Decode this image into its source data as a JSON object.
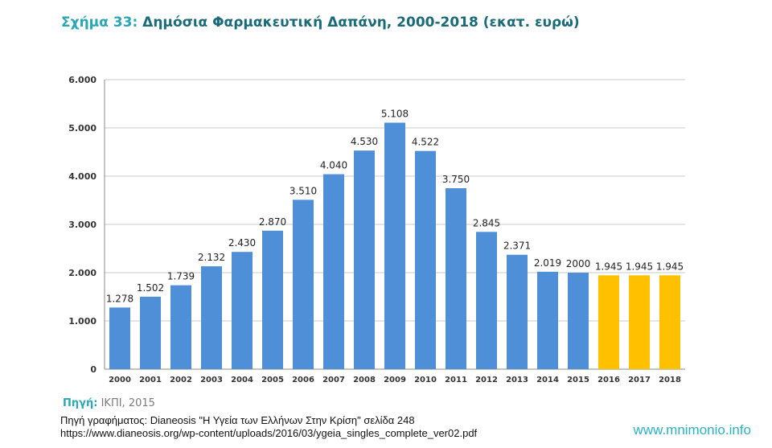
{
  "header": {
    "label": "Σχήμα 33:",
    "title": "Δημόσια Φαρμακευτική Δαπάνη, 2000-2018 (εκατ. ευρώ)"
  },
  "footer": {
    "source_label": "Πηγή:",
    "source_value": "ΙΚΠΙ, 2015",
    "chart_ref_line1": "Πηγή γραφήματος: Dianeosis \"Η Υγεία των Ελλήνων Στην Κρίση\" σελίδα 248",
    "chart_ref_line2": "https://www.dianeosis.org/wp-content/uploads/2016/03/ygeia_singles_complete_ver02.pdf",
    "site": "www.mnimonio.info"
  },
  "chart_data": {
    "type": "bar",
    "title": "Δημόσια Φαρμακευτική Δαπάνη, 2000-2018 (εκατ. ευρώ)",
    "categories": [
      "2000",
      "2001",
      "2002",
      "2003",
      "2004",
      "2005",
      "2006",
      "2007",
      "2008",
      "2009",
      "2010",
      "2011",
      "2012",
      "2013",
      "2014",
      "2015",
      "2016",
      "2017",
      "2018"
    ],
    "values": [
      1278,
      1502,
      1739,
      2132,
      2430,
      2870,
      3510,
      4040,
      4530,
      5108,
      4522,
      3750,
      2845,
      2371,
      2019,
      2000,
      1945,
      1945,
      1945
    ],
    "value_labels": [
      "1.278",
      "1.502",
      "1.739",
      "2.132",
      "2.430",
      "2.870",
      "3.510",
      "4.040",
      "4.530",
      "5.108",
      "4.522",
      "3.750",
      "2.845",
      "2.371",
      "2.019",
      "2000",
      "1.945",
      "1.945",
      "1.945"
    ],
    "y_ticks": [
      0,
      1000,
      2000,
      3000,
      4000,
      5000,
      6000
    ],
    "y_tick_labels": [
      "0",
      "1.000",
      "2.000",
      "3.000",
      "4.000",
      "5.000",
      "6.000"
    ],
    "ylim": [
      0,
      6000
    ],
    "grid": true,
    "legend": "none",
    "colors": {
      "actual": "#4f8fd8",
      "projected": "#ffc000",
      "grid": "#c8c8c8",
      "axis": "#888888"
    },
    "projected_years": [
      "2016",
      "2017",
      "2018"
    ]
  }
}
